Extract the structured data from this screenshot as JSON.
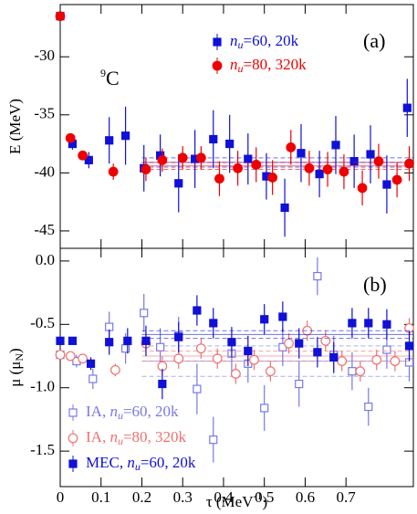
{
  "chart_data": [
    {
      "type": "scatter",
      "panel_label": "(a)",
      "nucleus": {
        "mass": "9",
        "symbol": "C"
      },
      "ylabel": {
        "pre": "E (MeV)"
      },
      "xlim": [
        0,
        0.865
      ],
      "xticks": [
        0,
        0.1,
        0.2,
        0.3,
        0.4,
        0.5,
        0.6,
        0.7
      ],
      "ylim": [
        -46.5,
        -25.5
      ],
      "yticks": [
        -45,
        -40,
        -35,
        -30
      ],
      "series": [
        {
          "label_var": "n",
          "label_sub": "u",
          "label_post": "=60, 20k",
          "color": "#1010d8",
          "marker": "square",
          "filled": true,
          "x": [
            0,
            0.03,
            0.07,
            0.12,
            0.16,
            0.205,
            0.245,
            0.29,
            0.33,
            0.375,
            0.415,
            0.46,
            0.505,
            0.55,
            0.59,
            0.635,
            0.675,
            0.72,
            0.76,
            0.8,
            0.85
          ],
          "values": [
            -26.5,
            -37.5,
            -38.9,
            -37.2,
            -36.8,
            -39.6,
            -38.5,
            -40.9,
            -38.8,
            -37.1,
            -37.5,
            -38.8,
            -40.3,
            -43.0,
            -38.3,
            -40.1,
            -37.6,
            -39.0,
            -38.4,
            -41.0,
            -34.4
          ],
          "errors": [
            0,
            0.5,
            0.7,
            2,
            2.5,
            2,
            1.8,
            2.5,
            2.5,
            2.5,
            2.5,
            2.2,
            2,
            2.5,
            2.5,
            2,
            2.5,
            2.3,
            2.5,
            2.5,
            2.5
          ],
          "fit": {
            "from": 0.2,
            "mean": -39.1,
            "error": 0.4
          }
        },
        {
          "label_var": "n",
          "label_sub": "u",
          "label_post": "=80, 320k",
          "color": "#ee0000",
          "marker": "circle",
          "filled": true,
          "x": [
            0,
            0.025,
            0.055,
            0.13,
            0.21,
            0.25,
            0.3,
            0.345,
            0.39,
            0.435,
            0.48,
            0.52,
            0.565,
            0.61,
            0.655,
            0.695,
            0.74,
            0.78,
            0.825,
            0.855
          ],
          "values": [
            -26.5,
            -37,
            -38.5,
            -39.9,
            -39.7,
            -38.9,
            -38.7,
            -38.7,
            -40.5,
            -39.6,
            -39.3,
            -40.4,
            -37.8,
            -39.6,
            -39.7,
            -39.9,
            -41.3,
            -39.0,
            -40.6,
            -39.2
          ],
          "errors": [
            0,
            0,
            0,
            0.7,
            1,
            1,
            1,
            1,
            1.5,
            1.5,
            1.5,
            1.5,
            1.5,
            1.5,
            1.5,
            1.5,
            1.5,
            1.5,
            1.5,
            1.5
          ],
          "fit": {
            "from": 0.2,
            "mean": -39.4,
            "error": 0.3
          }
        }
      ]
    },
    {
      "type": "scatter",
      "panel_label": "(b)",
      "ylabel": {
        "pre": "μ (μ",
        "sub": "N",
        "post": ")"
      },
      "xlabel": {
        "pre": "τ (MeV",
        "sup": "-1",
        "post": ")"
      },
      "xlim": [
        0,
        0.865
      ],
      "xticks": [
        0,
        0.1,
        0.2,
        0.3,
        0.4,
        0.5,
        0.6,
        0.7
      ],
      "ylim": [
        -1.78,
        0.1
      ],
      "yticks": [
        {
          "value": 0,
          "label": "0.0"
        },
        -0.5,
        {
          "value": -1,
          "label": "-1.0"
        },
        -1.5
      ],
      "series": [
        {
          "label_pre": "IA, ",
          "label_var": "n",
          "label_sub": "u",
          "label_post": "=60, 20k",
          "color": "#7878e8",
          "marker": "square",
          "filled": false,
          "x": [
            0,
            0.04,
            0.08,
            0.12,
            0.16,
            0.205,
            0.245,
            0.29,
            0.335,
            0.375,
            0.42,
            0.46,
            0.5,
            0.545,
            0.585,
            0.63,
            0.67,
            0.715,
            0.755,
            0.8,
            0.855
          ],
          "values": [
            -0.74,
            -0.79,
            -0.93,
            -0.52,
            -0.69,
            -0.41,
            -0.68,
            -0.59,
            -1.01,
            -1.41,
            -0.73,
            -0.81,
            -1.16,
            -0.68,
            -0.97,
            -0.12,
            -0.74,
            -0.87,
            -1.15,
            -0.7,
            -0.8
          ],
          "errors": [
            0,
            0.05,
            0.08,
            0.12,
            0.12,
            0.15,
            0.15,
            0.15,
            0.2,
            0.18,
            0.15,
            0.15,
            0.18,
            0.15,
            0.18,
            0.15,
            0.15,
            0.15,
            0.15,
            0.15,
            0.15
          ],
          "fit": {
            "from": 0.2,
            "mean": -0.79,
            "error": 0.12
          }
        },
        {
          "label_pre": "IA, ",
          "label_var": "n",
          "label_sub": "u",
          "label_post": "=80, 320k",
          "color": "#f07070",
          "marker": "circle",
          "filled": false,
          "x": [
            0,
            0.025,
            0.055,
            0.135,
            0.21,
            0.25,
            0.29,
            0.345,
            0.385,
            0.43,
            0.475,
            0.515,
            0.56,
            0.605,
            0.65,
            0.69,
            0.735,
            0.775,
            0.82,
            0.855
          ],
          "values": [
            -0.74,
            -0.75,
            -0.77,
            -0.86,
            -0.65,
            -0.83,
            -0.77,
            -0.69,
            -0.77,
            -0.89,
            -0.78,
            -0.87,
            -0.65,
            -0.55,
            -0.63,
            -0.79,
            -0.87,
            -0.78,
            -0.79,
            -0.53
          ],
          "errors": [
            0,
            0,
            0,
            0.05,
            0.08,
            0.08,
            0.08,
            0.08,
            0.08,
            0.08,
            0.08,
            0.08,
            0.08,
            0.08,
            0.08,
            0.08,
            0.08,
            0.08,
            0.08,
            0.08
          ],
          "fit": {
            "from": 0.2,
            "mean": -0.75,
            "error": 0.04
          }
        },
        {
          "label_pre": "MEC, ",
          "label_var": "n",
          "label_sub": "u",
          "label_post": "=60, 20k",
          "color": "#1010d8",
          "marker": "square",
          "filled": true,
          "x": [
            0,
            0.03,
            0.075,
            0.12,
            0.165,
            0.21,
            0.25,
            0.29,
            0.335,
            0.375,
            0.42,
            0.46,
            0.5,
            0.545,
            0.585,
            0.63,
            0.67,
            0.715,
            0.755,
            0.8,
            0.855
          ],
          "values": [
            -0.63,
            -0.63,
            -0.81,
            -0.64,
            -0.63,
            -0.63,
            -0.97,
            -0.6,
            -0.39,
            -0.49,
            -0.64,
            -0.71,
            -0.46,
            -0.44,
            -0.65,
            -0.72,
            -0.76,
            -0.49,
            -0.49,
            -0.5,
            -0.67
          ],
          "errors": [
            0,
            0,
            0.05,
            0.1,
            0.1,
            0.12,
            0.12,
            0.12,
            0.12,
            0.12,
            0.12,
            0.12,
            0.12,
            0.12,
            0.12,
            0.12,
            0.12,
            0.12,
            0.12,
            0.12,
            0.12
          ],
          "fit": {
            "from": 0.2,
            "mean": -0.58,
            "error": 0.03
          }
        }
      ]
    }
  ]
}
